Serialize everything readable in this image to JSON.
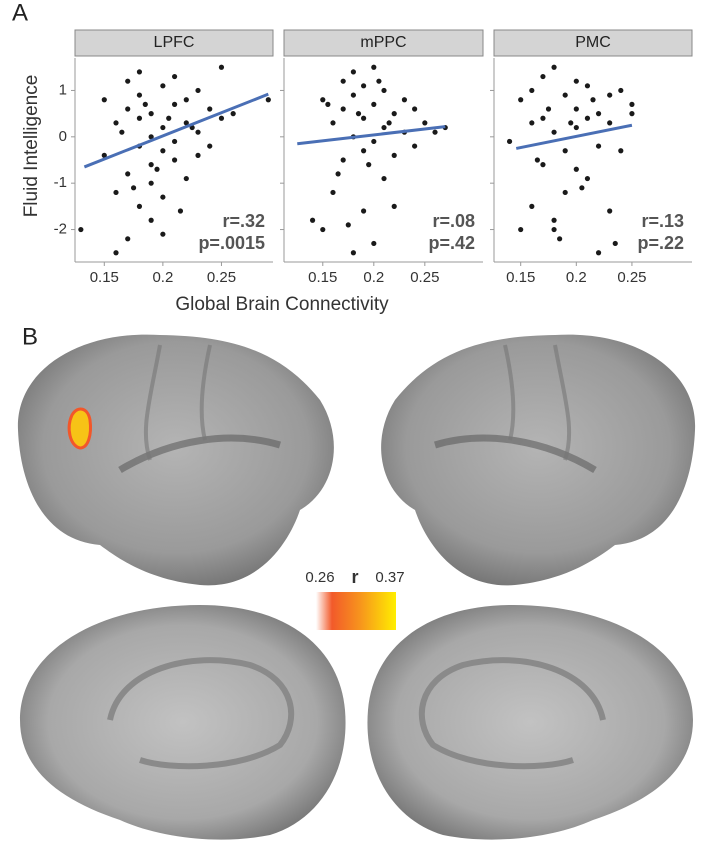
{
  "panel_a": {
    "label": "A",
    "x_label": "Global Brain Connectivity",
    "y_label": "Fluid Intelligence"
  },
  "panel_b": {
    "label": "B",
    "colorbar": {
      "min": 0.26,
      "max": 0.37,
      "label": "r"
    }
  },
  "chart_data": [
    {
      "type": "scatter",
      "title": "LPFC",
      "annotations": [
        "r=.32",
        "p=.0015"
      ],
      "color": "#1a1a1a",
      "fit_color": "#4a6fb5",
      "xlim": [
        0.125,
        0.294
      ],
      "ylim": [
        -2.7,
        1.7
      ],
      "xticks": [
        0.15,
        0.2,
        0.25
      ],
      "yticks": [
        1,
        0,
        -1,
        -2
      ],
      "x": [
        0.13,
        0.15,
        0.15,
        0.16,
        0.16,
        0.16,
        0.17,
        0.17,
        0.17,
        0.17,
        0.18,
        0.18,
        0.18,
        0.18,
        0.18,
        0.19,
        0.19,
        0.19,
        0.19,
        0.19,
        0.2,
        0.2,
        0.2,
        0.2,
        0.2,
        0.21,
        0.21,
        0.21,
        0.21,
        0.22,
        0.22,
        0.22,
        0.23,
        0.23,
        0.23,
        0.24,
        0.24,
        0.25,
        0.25,
        0.26,
        0.29,
        0.165,
        0.175,
        0.185,
        0.195,
        0.205,
        0.215,
        0.225
      ],
      "y": [
        -2,
        0.8,
        -0.4,
        -2.5,
        0.3,
        -1.2,
        0.6,
        -0.8,
        -2.2,
        1.2,
        0.4,
        -0.2,
        -1.5,
        1.4,
        0.9,
        0,
        -0.6,
        -1,
        0.5,
        -1.8,
        0.2,
        -0.3,
        1.1,
        -1.3,
        -2.1,
        0.7,
        -0.1,
        -0.5,
        1.3,
        0.3,
        -0.9,
        0.8,
        0.1,
        -0.4,
        1,
        0.6,
        -0.2,
        1.5,
        0.4,
        0.5,
        0.8,
        0.1,
        -1.1,
        0.7,
        -0.7,
        0.4,
        -1.6,
        0.2
      ],
      "fit": {
        "x": [
          0.133,
          0.29
        ],
        "y": [
          -0.65,
          0.92
        ]
      }
    },
    {
      "type": "scatter",
      "title": "mPPC",
      "annotations": [
        "r=.08",
        "p=.42"
      ],
      "color": "#1a1a1a",
      "fit_color": "#4a6fb5",
      "xlim": [
        0.112,
        0.307
      ],
      "ylim": [
        -2.7,
        1.7
      ],
      "xticks": [
        0.15,
        0.2,
        0.25
      ],
      "yticks": [
        1,
        0,
        -1,
        -2
      ],
      "x": [
        0.14,
        0.15,
        0.15,
        0.16,
        0.16,
        0.17,
        0.17,
        0.17,
        0.18,
        0.18,
        0.18,
        0.18,
        0.19,
        0.19,
        0.19,
        0.19,
        0.2,
        0.2,
        0.2,
        0.2,
        0.21,
        0.21,
        0.21,
        0.22,
        0.22,
        0.22,
        0.23,
        0.23,
        0.24,
        0.24,
        0.25,
        0.26,
        0.27,
        0.165,
        0.175,
        0.185,
        0.195,
        0.205,
        0.215,
        0.155
      ],
      "y": [
        -1.8,
        0.8,
        -2,
        0.3,
        -1.2,
        1.2,
        -0.5,
        0.6,
        1.4,
        -2.5,
        0,
        0.9,
        -0.3,
        1.1,
        -1.6,
        0.4,
        1.5,
        -0.1,
        -2.3,
        0.7,
        0.2,
        -0.9,
        1,
        0.5,
        -0.4,
        -1.5,
        0.1,
        0.8,
        -0.2,
        0.6,
        0.3,
        0.1,
        0.2,
        -0.8,
        -1.9,
        0.5,
        -0.6,
        1.2,
        0.3,
        0.7
      ],
      "fit": {
        "x": [
          0.125,
          0.27
        ],
        "y": [
          -0.15,
          0.22
        ]
      }
    },
    {
      "type": "scatter",
      "title": "PMC",
      "annotations": [
        "r=.13",
        "p=.22"
      ],
      "color": "#1a1a1a",
      "fit_color": "#4a6fb5",
      "xlim": [
        0.126,
        0.304
      ],
      "ylim": [
        -2.7,
        1.7
      ],
      "xticks": [
        0.15,
        0.2,
        0.25
      ],
      "yticks": [
        1,
        0,
        -1,
        -2
      ],
      "x": [
        0.14,
        0.15,
        0.15,
        0.16,
        0.16,
        0.16,
        0.17,
        0.17,
        0.17,
        0.18,
        0.18,
        0.18,
        0.18,
        0.19,
        0.19,
        0.19,
        0.2,
        0.2,
        0.2,
        0.2,
        0.21,
        0.21,
        0.21,
        0.22,
        0.22,
        0.22,
        0.23,
        0.23,
        0.23,
        0.24,
        0.24,
        0.25,
        0.25,
        0.165,
        0.175,
        0.185,
        0.195,
        0.205,
        0.215,
        0.235
      ],
      "y": [
        -0.1,
        0.8,
        -2,
        0.3,
        -1.5,
        1,
        -0.6,
        1.3,
        0.4,
        1.5,
        -2,
        0.1,
        -1.8,
        0.9,
        -0.3,
        -1.2,
        1.2,
        0.2,
        -0.7,
        0.6,
        0.4,
        -0.9,
        1.1,
        -2.5,
        0.5,
        -0.2,
        0.9,
        -1.6,
        0.3,
        1,
        -0.3,
        0.7,
        0.5,
        -0.5,
        0.6,
        -2.2,
        0.3,
        -1.1,
        0.8,
        -2.3
      ],
      "fit": {
        "x": [
          0.146,
          0.25
        ],
        "y": [
          -0.25,
          0.25
        ]
      }
    }
  ]
}
